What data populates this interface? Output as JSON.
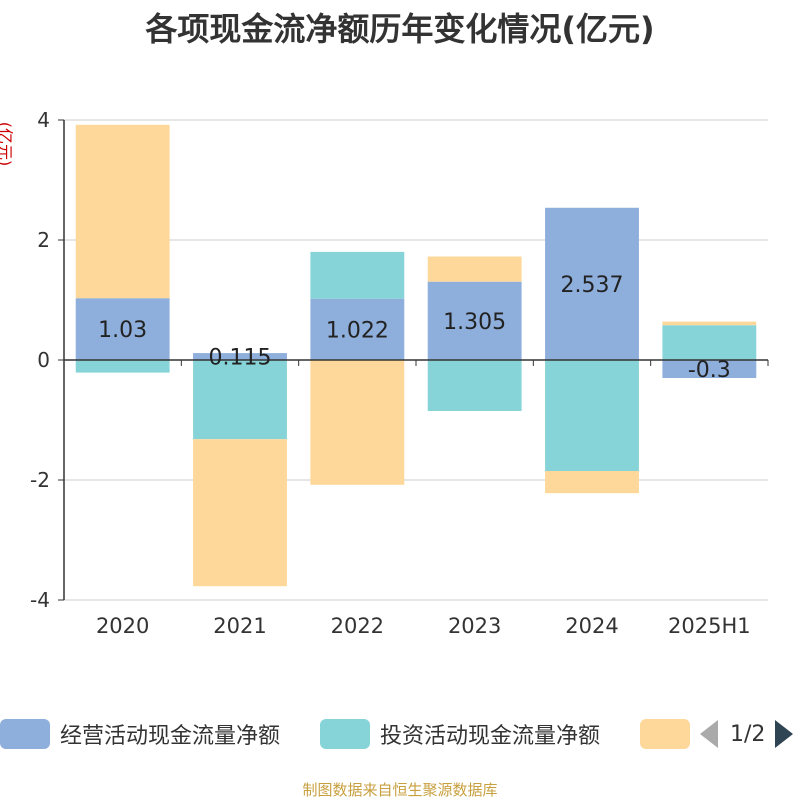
{
  "chart_data": {
    "type": "bar",
    "stacked": true,
    "title": "各项现金流净额历年变化情况(亿元)",
    "ylabel": "(亿元)",
    "categories": [
      "2020",
      "2021",
      "2022",
      "2023",
      "2024",
      "2025H1"
    ],
    "ylim": [
      -4,
      4
    ],
    "yticks": [
      4,
      2,
      0,
      -2,
      -4
    ],
    "grid": true,
    "series": [
      {
        "name": "经营活动现金流量净额",
        "color": "#8eaedb",
        "values": [
          1.03,
          0.115,
          1.022,
          1.305,
          2.537,
          -0.3
        ],
        "labels": [
          "1.03",
          "0.115",
          "1.022",
          "1.305",
          "2.537",
          "-0.3"
        ]
      },
      {
        "name": "投资活动现金流量净额",
        "color": "#86d4d8",
        "values": [
          -0.21,
          -1.32,
          0.78,
          -0.85,
          -1.85,
          0.58
        ]
      },
      {
        "name": "",
        "color": "#fdd89a",
        "values": [
          2.89,
          -2.45,
          -2.08,
          0.42,
          -0.37,
          0.06
        ]
      }
    ],
    "legend": {
      "position": "bottom",
      "page": "1/2"
    }
  },
  "source_text": "制图数据来自恒生聚源数据库",
  "colors": {
    "title": "#333333",
    "unit": "#cc0000",
    "source": "#c8a040",
    "axis": "#333333",
    "grid": "#cccccc"
  }
}
